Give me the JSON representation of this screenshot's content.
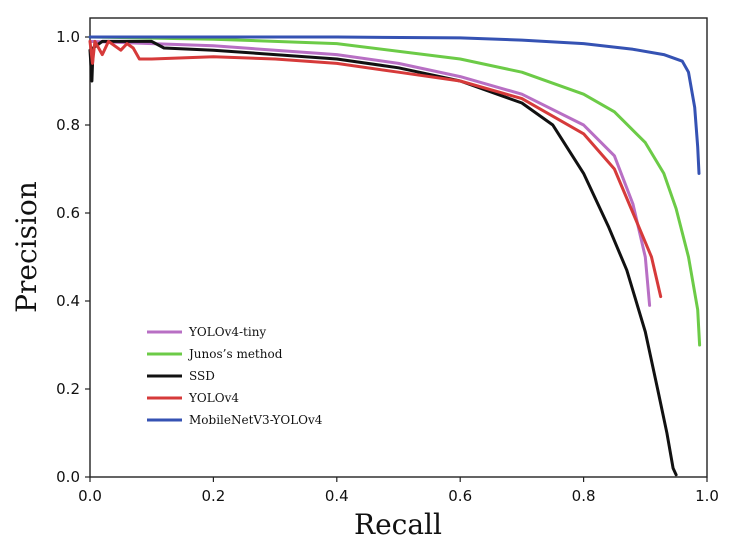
{
  "chart_data": {
    "type": "line",
    "title": "",
    "xlabel": "Recall",
    "ylabel": "Precision",
    "xlim": [
      0.0,
      1.0
    ],
    "ylim": [
      0.0,
      1.0
    ],
    "xticks": [
      "0.0",
      "0.2",
      "0.4",
      "0.6",
      "0.8",
      "1.0"
    ],
    "yticks": [
      "0.0",
      "0.2",
      "0.4",
      "0.6",
      "0.8",
      "1.0"
    ],
    "grid": false,
    "legend_position": "lower-left",
    "series": [
      {
        "name": "YOLOv4-tiny",
        "color": "#b86fc4",
        "points": [
          [
            0.0,
            0.99
          ],
          [
            0.1,
            0.985
          ],
          [
            0.2,
            0.98
          ],
          [
            0.3,
            0.97
          ],
          [
            0.4,
            0.96
          ],
          [
            0.5,
            0.94
          ],
          [
            0.6,
            0.91
          ],
          [
            0.7,
            0.87
          ],
          [
            0.8,
            0.8
          ],
          [
            0.85,
            0.73
          ],
          [
            0.88,
            0.62
          ],
          [
            0.9,
            0.5
          ],
          [
            0.907,
            0.39
          ]
        ]
      },
      {
        "name": "Junos’s method",
        "color": "#6ccb47",
        "points": [
          [
            0.0,
            1.0
          ],
          [
            0.2,
            0.995
          ],
          [
            0.4,
            0.985
          ],
          [
            0.6,
            0.95
          ],
          [
            0.7,
            0.92
          ],
          [
            0.8,
            0.87
          ],
          [
            0.85,
            0.83
          ],
          [
            0.9,
            0.76
          ],
          [
            0.93,
            0.69
          ],
          [
            0.95,
            0.61
          ],
          [
            0.97,
            0.5
          ],
          [
            0.985,
            0.38
          ],
          [
            0.988,
            0.3
          ]
        ]
      },
      {
        "name": "SSD",
        "color": "#111111",
        "points": [
          [
            0.0,
            0.97
          ],
          [
            0.003,
            0.9
          ],
          [
            0.005,
            0.975
          ],
          [
            0.02,
            0.99
          ],
          [
            0.04,
            0.99
          ],
          [
            0.1,
            0.99
          ],
          [
            0.12,
            0.975
          ],
          [
            0.2,
            0.97
          ],
          [
            0.3,
            0.96
          ],
          [
            0.4,
            0.95
          ],
          [
            0.5,
            0.93
          ],
          [
            0.6,
            0.9
          ],
          [
            0.7,
            0.85
          ],
          [
            0.75,
            0.8
          ],
          [
            0.8,
            0.69
          ],
          [
            0.84,
            0.57
          ],
          [
            0.87,
            0.47
          ],
          [
            0.9,
            0.33
          ],
          [
            0.92,
            0.2
          ],
          [
            0.935,
            0.1
          ],
          [
            0.945,
            0.02
          ],
          [
            0.95,
            0.005
          ]
        ]
      },
      {
        "name": "YOLOv4",
        "color": "#d63a3a",
        "points": [
          [
            0.0,
            0.99
          ],
          [
            0.004,
            0.94
          ],
          [
            0.008,
            0.99
          ],
          [
            0.02,
            0.96
          ],
          [
            0.03,
            0.99
          ],
          [
            0.05,
            0.97
          ],
          [
            0.06,
            0.985
          ],
          [
            0.07,
            0.975
          ],
          [
            0.08,
            0.95
          ],
          [
            0.1,
            0.95
          ],
          [
            0.2,
            0.955
          ],
          [
            0.3,
            0.95
          ],
          [
            0.4,
            0.94
          ],
          [
            0.5,
            0.92
          ],
          [
            0.6,
            0.9
          ],
          [
            0.7,
            0.86
          ],
          [
            0.8,
            0.78
          ],
          [
            0.85,
            0.7
          ],
          [
            0.88,
            0.6
          ],
          [
            0.91,
            0.5
          ],
          [
            0.925,
            0.41
          ]
        ]
      },
      {
        "name": "MobileNetV3-YOLOv4",
        "color": "#3552b3",
        "points": [
          [
            0.0,
            1.0
          ],
          [
            0.2,
            1.0
          ],
          [
            0.4,
            1.0
          ],
          [
            0.6,
            0.998
          ],
          [
            0.7,
            0.993
          ],
          [
            0.8,
            0.985
          ],
          [
            0.88,
            0.972
          ],
          [
            0.93,
            0.96
          ],
          [
            0.96,
            0.945
          ],
          [
            0.97,
            0.92
          ],
          [
            0.98,
            0.84
          ],
          [
            0.985,
            0.75
          ],
          [
            0.987,
            0.69
          ]
        ]
      }
    ]
  }
}
